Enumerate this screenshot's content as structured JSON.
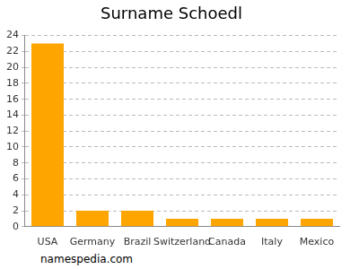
{
  "chart_data": {
    "type": "bar",
    "title": "Surname Schoedl",
    "categories": [
      "USA",
      "Germany",
      "Brazil",
      "Switzerland",
      "Canada",
      "Italy",
      "Mexico"
    ],
    "values": [
      23,
      2,
      2,
      1,
      1,
      1,
      1
    ],
    "color": "#ffa500",
    "ylim": [
      0,
      24
    ],
    "yticks": [
      0,
      2,
      4,
      6,
      8,
      10,
      12,
      14,
      16,
      18,
      20,
      22,
      24
    ],
    "grid": true,
    "annotations": [
      "namespedia.com"
    ]
  }
}
